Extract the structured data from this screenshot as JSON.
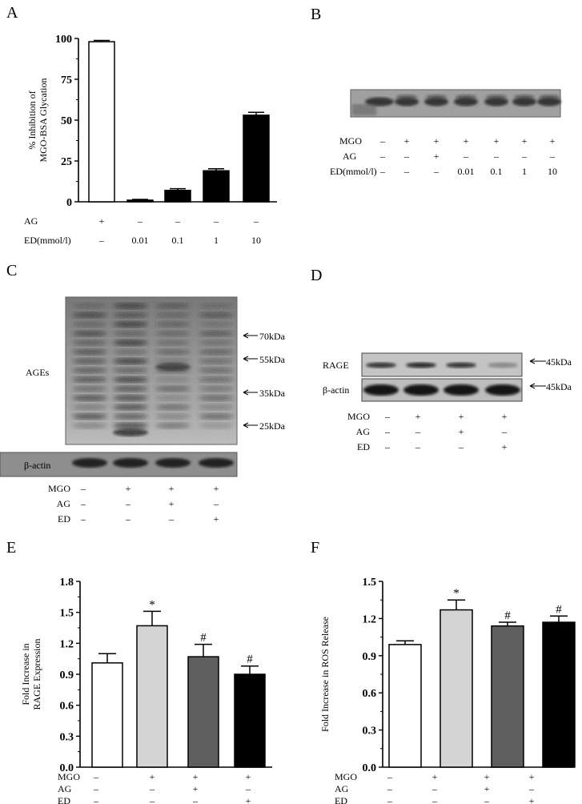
{
  "panel_labels": [
    "A",
    "B",
    "C",
    "D",
    "E",
    "F"
  ],
  "chart_data": [
    {
      "panel": "A",
      "type": "bar",
      "ylabel": [
        "% Inhibition of",
        "MGO-BSA Glycation"
      ],
      "ylim": [
        0,
        100
      ],
      "yticks": [
        "0",
        "25",
        "50",
        "75",
        "100"
      ],
      "values": [
        98,
        1,
        7,
        19,
        53
      ],
      "errors": [
        0.8,
        0.5,
        1.0,
        1.2,
        1.8
      ],
      "fills": [
        "#ffffff",
        "#000000",
        "#000000",
        "#000000",
        "#000000"
      ],
      "treatment_rows": [
        {
          "label": "AG",
          "values": [
            "+",
            "–",
            "–",
            "–",
            "–"
          ]
        },
        {
          "label": "ED(mmol/l)",
          "values": [
            "–",
            "0.01",
            "0.1",
            "1",
            "10"
          ]
        }
      ]
    },
    {
      "panel": "E",
      "type": "bar",
      "ylabel": [
        "Fold Increase in",
        "RAGE Expression"
      ],
      "ylim": [
        0,
        1.8
      ],
      "yticks": [
        "0.0",
        "0.3",
        "0.6",
        "0.9",
        "1.2",
        "1.5",
        "1.8"
      ],
      "values": [
        1.01,
        1.37,
        1.07,
        0.9
      ],
      "errors": [
        0.09,
        0.14,
        0.12,
        0.08
      ],
      "annotations": [
        "",
        "*",
        "#",
        "#"
      ],
      "fills": [
        "#ffffff",
        "#d4d4d4",
        "#5f5f5f",
        "#000000"
      ],
      "treatment_rows": [
        {
          "label": "MGO",
          "values": [
            "–",
            "+",
            "+",
            "+"
          ]
        },
        {
          "label": "AG",
          "values": [
            "–",
            "–",
            "+",
            "–"
          ]
        },
        {
          "label": "ED",
          "values": [
            "–",
            "–",
            "–",
            "+"
          ]
        }
      ]
    },
    {
      "panel": "F",
      "type": "bar",
      "ylabel": [
        "Fold Increase in ROS Release"
      ],
      "ylim": [
        0,
        1.5
      ],
      "yticks": [
        "0.0",
        "0.3",
        "0.6",
        "0.9",
        "1.2",
        "1.5"
      ],
      "values": [
        0.99,
        1.27,
        1.14,
        1.17
      ],
      "errors": [
        0.03,
        0.08,
        0.03,
        0.05
      ],
      "annotations": [
        "",
        "*",
        "#",
        "#"
      ],
      "fills": [
        "#ffffff",
        "#d4d4d4",
        "#5f5f5f",
        "#000000"
      ],
      "treatment_rows": [
        {
          "label": "MGO",
          "values": [
            "–",
            "+",
            "+",
            "+"
          ]
        },
        {
          "label": "AG",
          "values": [
            "–",
            "–",
            "+",
            "–"
          ]
        },
        {
          "label": "ED",
          "values": [
            "–",
            "–",
            "–",
            "+"
          ]
        }
      ]
    }
  ],
  "blot_B": {
    "treatment_rows": [
      {
        "label": "MGO",
        "values": [
          "–",
          "+",
          "+",
          "+",
          "+",
          "+",
          "+"
        ]
      },
      {
        "label": "AG",
        "values": [
          "–",
          "–",
          "+",
          "–",
          "–",
          "–",
          "–"
        ]
      },
      {
        "label": "ED(mmol/l)",
        "values": [
          "–",
          "–",
          "–",
          "0.01",
          "0.1",
          "1",
          "10"
        ]
      }
    ]
  },
  "blot_C": {
    "label_main": "AGEs",
    "label_actin": "β-actin",
    "markers": [
      "70kDa",
      "55kDa",
      "35kDa",
      "25kDa"
    ],
    "treatment_rows": [
      {
        "label": "MGO",
        "values": [
          "–",
          "+",
          "+",
          "+"
        ]
      },
      {
        "label": "AG",
        "values": [
          "–",
          "–",
          "+",
          "–"
        ]
      },
      {
        "label": "ED",
        "values": [
          "–",
          "–",
          "–",
          "+"
        ]
      }
    ]
  },
  "blot_D": {
    "label_main": "RAGE",
    "label_actin": "β-actin",
    "markers": [
      "45kDa",
      "45kDa"
    ],
    "band_intensity": [
      0.75,
      0.8,
      0.75,
      0.3
    ],
    "treatment_rows": [
      {
        "label": "MGO",
        "values": [
          "–",
          "+",
          "+",
          "+"
        ]
      },
      {
        "label": "AG",
        "values": [
          "–",
          "–",
          "+",
          "–"
        ]
      },
      {
        "label": "ED",
        "values": [
          "–",
          "–",
          "–",
          "+"
        ]
      }
    ]
  }
}
